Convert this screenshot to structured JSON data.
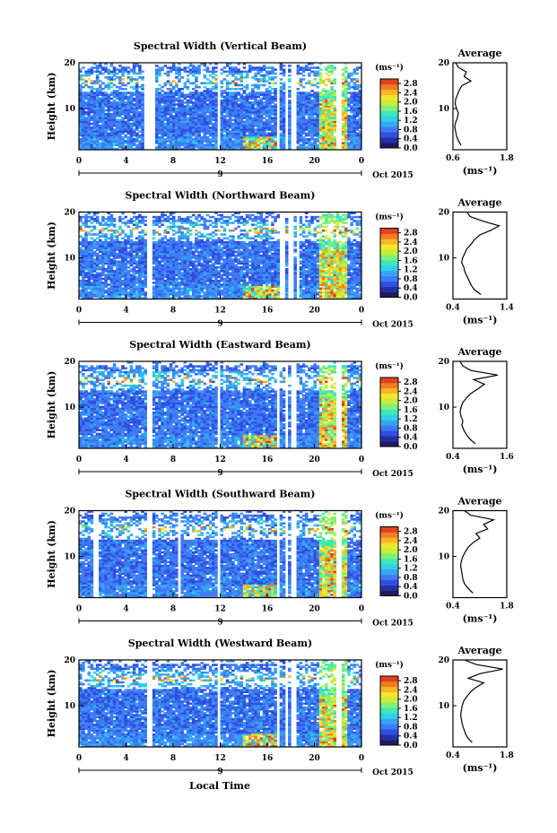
{
  "figure": {
    "xlabel": "Local Time",
    "date_label": "Oct 2015",
    "colorbar_unit": "(ms⁻¹)",
    "avg_title": "Average",
    "avg_unit": "(ms⁻¹)",
    "colors": {
      "c0": "#1e1b63",
      "c1": "#2530a8",
      "c2": "#2f4fe0",
      "c3": "#3f7af5",
      "c4": "#37a6f2",
      "c5": "#2fd1e6",
      "c6": "#3fe6b8",
      "c7": "#7ff07a",
      "c8": "#c6ee3a",
      "c9": "#f3e52c",
      "c10": "#f7b52a",
      "c11": "#f07d22",
      "c12": "#e2401f"
    }
  },
  "chart_data": [
    {
      "type": "heatmap",
      "title": "Spectral Width (Vertical Beam)",
      "ylabel": "Height (km)",
      "x_ticks": [
        "0",
        "4",
        "8",
        "12",
        "16",
        "20",
        "0"
      ],
      "x_day": "9",
      "y_ticks": [
        "10",
        "20"
      ],
      "xlim": [
        0,
        24
      ],
      "ylim": [
        1,
        20
      ],
      "colorbar_ticks": [
        "0.0",
        "0.4",
        "0.8",
        "1.2",
        "1.6",
        "2.0",
        "2.4",
        "2.8"
      ],
      "colorbar_range": [
        0,
        3.0
      ],
      "gaps_hours": [
        5.8,
        6.3,
        11.9,
        16.9,
        17.6,
        18.2,
        22.1
      ],
      "average": {
        "x_ticks": [
          "0.6",
          "1.8"
        ],
        "xlim": [
          0.6,
          1.8
        ],
        "y_ticks": [
          "10",
          "20"
        ],
        "ylim": [
          1,
          20
        ],
        "height": [
          2,
          3,
          4,
          5,
          6,
          7,
          8,
          9,
          10,
          11,
          12,
          13,
          14,
          15,
          16,
          17,
          18,
          19,
          20
        ],
        "value": [
          0.78,
          0.72,
          0.68,
          0.66,
          0.64,
          0.66,
          0.7,
          0.72,
          0.68,
          0.65,
          0.66,
          0.7,
          0.74,
          0.8,
          1.0,
          0.85,
          0.9,
          0.72,
          0.66
        ]
      }
    },
    {
      "type": "heatmap",
      "title": "Spectral Width (Northward Beam)",
      "ylabel": "Height (km)",
      "x_ticks": [
        "0",
        "4",
        "8",
        "12",
        "16",
        "20",
        "0"
      ],
      "x_day": "9",
      "y_ticks": [
        "10",
        "20"
      ],
      "xlim": [
        0,
        24
      ],
      "ylim": [
        1,
        20
      ],
      "colorbar_ticks": [
        "0.0",
        "0.4",
        "0.8",
        "1.2",
        "1.6",
        "2.0",
        "2.4",
        "2.8"
      ],
      "colorbar_range": [
        0,
        3.0
      ],
      "gaps_hours": [
        6.0,
        17.3,
        18.0,
        18.6
      ],
      "average": {
        "x_ticks": [
          "0.4",
          "1.4"
        ],
        "xlim": [
          0.4,
          1.4
        ],
        "y_ticks": [
          "10",
          "20"
        ],
        "ylim": [
          1,
          20
        ],
        "height": [
          2,
          3,
          4,
          5,
          6,
          7,
          8,
          9,
          10,
          11,
          12,
          13,
          14,
          15,
          16,
          17,
          18,
          19,
          20
        ],
        "value": [
          0.92,
          0.8,
          0.74,
          0.7,
          0.66,
          0.62,
          0.6,
          0.56,
          0.58,
          0.62,
          0.66,
          0.74,
          0.8,
          0.9,
          1.1,
          1.26,
          0.96,
          0.72,
          0.66
        ]
      }
    },
    {
      "type": "heatmap",
      "title": "Spectral Width (Eastward Beam)",
      "ylabel": "Height (km)",
      "x_ticks": [
        "0",
        "4",
        "8",
        "12",
        "16",
        "20",
        "0"
      ],
      "x_day": "9",
      "y_ticks": [
        "10",
        "20"
      ],
      "xlim": [
        0,
        24
      ],
      "ylim": [
        1,
        20
      ],
      "colorbar_ticks": [
        "0.0",
        "0.4",
        "0.8",
        "1.2",
        "1.6",
        "2.0",
        "2.4",
        "2.8"
      ],
      "colorbar_range": [
        0,
        3.0
      ],
      "gaps_hours": [
        6.0,
        11.9,
        16.9,
        17.6,
        18.2,
        22.1
      ],
      "average": {
        "x_ticks": [
          "0.4",
          "1.6"
        ],
        "xlim": [
          0.4,
          1.6
        ],
        "y_ticks": [
          "10",
          "20"
        ],
        "ylim": [
          1,
          20
        ],
        "height": [
          2,
          3,
          4,
          5,
          6,
          7,
          8,
          9,
          10,
          11,
          12,
          13,
          14,
          15,
          16,
          17,
          18,
          19,
          20
        ],
        "value": [
          0.9,
          0.78,
          0.7,
          0.64,
          0.6,
          0.62,
          0.58,
          0.56,
          0.58,
          0.62,
          0.7,
          0.8,
          0.96,
          1.1,
          0.86,
          1.4,
          0.8,
          0.62,
          0.56
        ]
      }
    },
    {
      "type": "heatmap",
      "title": "Spectral Width (Southward Beam)",
      "ylabel": "Height (km)",
      "x_ticks": [
        "0",
        "4",
        "8",
        "12",
        "16",
        "20",
        "0"
      ],
      "x_day": "9",
      "y_ticks": [
        "10",
        "20"
      ],
      "xlim": [
        0,
        24
      ],
      "ylim": [
        1,
        20
      ],
      "colorbar_ticks": [
        "0.0",
        "0.4",
        "0.8",
        "1.2",
        "1.6",
        "2.0",
        "2.4",
        "2.8"
      ],
      "colorbar_range": [
        0,
        3.0
      ],
      "gaps_hours": [
        1.4,
        6.0,
        8.5,
        11.9,
        16.9,
        17.6,
        18.2,
        22.1
      ],
      "average": {
        "x_ticks": [
          "0.4",
          "1.8"
        ],
        "xlim": [
          0.4,
          1.8
        ],
        "y_ticks": [
          "10",
          "20"
        ],
        "ylim": [
          1,
          20
        ],
        "height": [
          2,
          3,
          4,
          5,
          6,
          7,
          8,
          9,
          10,
          11,
          12,
          13,
          14,
          15,
          16,
          17,
          18,
          19,
          20
        ],
        "value": [
          0.92,
          0.8,
          0.7,
          0.66,
          0.64,
          0.62,
          0.6,
          0.62,
          0.66,
          0.72,
          0.8,
          0.92,
          1.1,
          1.0,
          1.3,
          1.2,
          1.46,
          0.86,
          0.7
        ]
      }
    },
    {
      "type": "heatmap",
      "title": "Spectral Width (Westward Beam)",
      "ylabel": "Height (km)",
      "x_ticks": [
        "0",
        "4",
        "8",
        "12",
        "16",
        "20",
        "0"
      ],
      "x_day": "9",
      "y_ticks": [
        "10",
        "20"
      ],
      "xlim": [
        0,
        24
      ],
      "ylim": [
        1,
        20
      ],
      "colorbar_ticks": [
        "0.0",
        "0.4",
        "0.8",
        "1.2",
        "1.6",
        "2.0",
        "2.4",
        "2.8"
      ],
      "colorbar_range": [
        0,
        3.0
      ],
      "gaps_hours": [
        6.0,
        11.9,
        16.9,
        17.6,
        18.2,
        22.1
      ],
      "average": {
        "x_ticks": [
          "0.4",
          "1.8"
        ],
        "xlim": [
          0.4,
          1.8
        ],
        "y_ticks": [
          "10",
          "20"
        ],
        "ylim": [
          1,
          20
        ],
        "height": [
          2,
          3,
          4,
          5,
          6,
          7,
          8,
          9,
          10,
          11,
          12,
          13,
          14,
          15,
          16,
          17,
          18,
          19,
          20
        ],
        "value": [
          0.9,
          0.78,
          0.72,
          0.68,
          0.64,
          0.62,
          0.6,
          0.62,
          0.64,
          0.68,
          0.76,
          0.86,
          1.0,
          1.2,
          0.8,
          1.1,
          1.7,
          1.0,
          0.7
        ]
      }
    }
  ]
}
